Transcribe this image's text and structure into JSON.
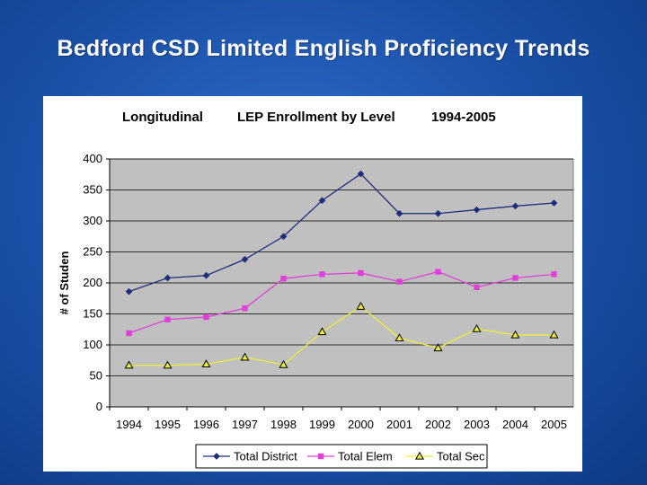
{
  "slide": {
    "title": "Bedford CSD  Limited English Proficiency Trends"
  },
  "chart_data": {
    "type": "line",
    "title_parts": [
      "Longitudinal",
      "LEP Enrollment by Level",
      "1994-2005"
    ],
    "xlabel": "",
    "ylabel": "# of Studen",
    "x": [
      "1994",
      "1995",
      "1996",
      "1997",
      "1998",
      "1999",
      "2000",
      "2001",
      "2002",
      "2003",
      "2004",
      "2005"
    ],
    "ylim": [
      0,
      400
    ],
    "yticks": [
      0,
      50,
      100,
      150,
      200,
      250,
      300,
      350,
      400
    ],
    "grid": true,
    "legend_position": "bottom",
    "series": [
      {
        "name": "Total District",
        "color": "#1f2d7a",
        "marker": "diamond",
        "values": [
          186,
          208,
          212,
          238,
          275,
          333,
          376,
          312,
          312,
          318,
          324,
          329
        ]
      },
      {
        "name": "Total Elem",
        "color": "#e040d8",
        "marker": "square",
        "values": [
          119,
          141,
          145,
          159,
          207,
          214,
          216,
          202,
          218,
          193,
          208,
          214
        ]
      },
      {
        "name": "Total Sec",
        "color": "#ecec3a",
        "marker": "triangle",
        "values": [
          67,
          67,
          69,
          80,
          68,
          121,
          162,
          111,
          95,
          126,
          116,
          116
        ]
      }
    ]
  }
}
